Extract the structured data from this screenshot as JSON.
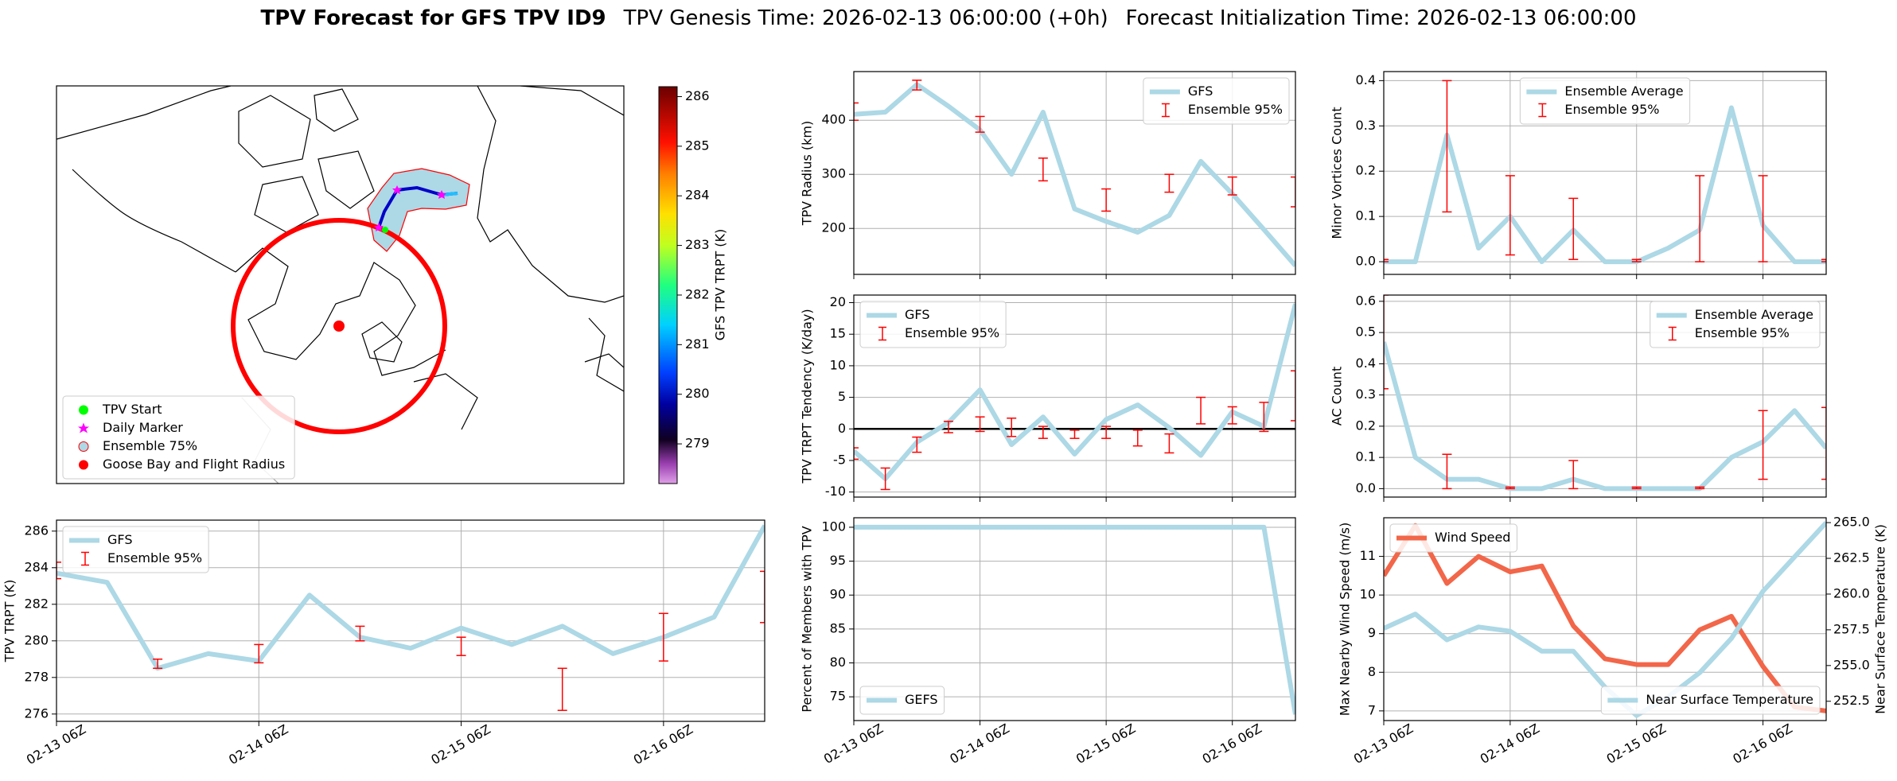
{
  "title": [
    "TPV Forecast for GFS TPV ID9",
    "TPV Genesis Time: 2026-02-13 06:00:00 (+0h)",
    "Forecast Initialization Time: 2026-02-13 06:00:00"
  ],
  "chart_data": [
    {
      "type": "map",
      "legend_labels": [
        "TPV Start",
        "Daily Marker",
        "Ensemble 75%",
        "Goose Bay and Flight Radius"
      ],
      "legend_colors": [
        "#00ff00",
        "#ff00ff",
        "#add8e6",
        "#ff0000"
      ],
      "colorbar": {
        "label": "GFS TPV TRPT (K)",
        "lim": [
          278.2,
          286.2
        ],
        "ticks": [
          279,
          280,
          281,
          282,
          283,
          284,
          285,
          286
        ]
      }
    },
    {
      "type": "line",
      "ylabel": "TPV TRPT (K)",
      "categories": [
        "02-13 06Z",
        null,
        null,
        null,
        "02-14 06Z",
        null,
        null,
        null,
        "02-15 06Z",
        null,
        null,
        null,
        "02-16 06Z",
        null,
        null
      ],
      "series": [
        {
          "name": "GFS",
          "color": "#add8e6",
          "values": [
            283.7,
            283.2,
            278.5,
            279.3,
            278.9,
            282.5,
            280.2,
            279.6,
            280.7,
            279.8,
            280.8,
            279.3,
            280.2,
            281.3,
            286.3
          ]
        },
        {
          "name": "Ensemble 95%",
          "type": "errorbar",
          "color": "#ff0000",
          "lower": [
            283.4,
            null,
            278.5,
            null,
            278.8,
            null,
            280.0,
            null,
            279.2,
            null,
            276.2,
            null,
            278.9,
            null,
            281.0
          ],
          "upper": [
            284.3,
            null,
            279.0,
            null,
            279.8,
            null,
            280.8,
            null,
            280.2,
            null,
            278.5,
            null,
            281.5,
            null,
            283.8
          ]
        }
      ],
      "ylim": [
        275.6,
        286.6
      ],
      "yticks": [
        276,
        278,
        280,
        282,
        284,
        286
      ],
      "grid": true,
      "legend": "upper left"
    },
    {
      "type": "line",
      "ylabel": "TPV Radius (km)",
      "series": [
        {
          "name": "GFS",
          "color": "#add8e6",
          "values": [
            411,
            415,
            466,
            426,
            382,
            300,
            415,
            236,
            213,
            193,
            224,
            324,
            264,
            198,
            131
          ]
        },
        {
          "name": "Ensemble 95%",
          "type": "errorbar",
          "color": "#ff0000",
          "lower": [
            400,
            null,
            456,
            null,
            378,
            null,
            288,
            null,
            232,
            null,
            267,
            null,
            262,
            null,
            240
          ],
          "upper": [
            432,
            null,
            474,
            null,
            407,
            null,
            330,
            null,
            273,
            null,
            300,
            null,
            295,
            null,
            295
          ]
        }
      ],
      "ylim": [
        115,
        490
      ],
      "yticks": [
        200,
        300,
        400
      ],
      "grid": true,
      "legend": "upper right"
    },
    {
      "type": "line",
      "ylabel": "TPV TRPT Tendency (K/day)",
      "series": [
        {
          "name": "GFS",
          "color": "#add8e6",
          "values": [
            -3.5,
            -7.9,
            -2.1,
            1,
            6.2,
            -2.5,
            1.9,
            -4,
            1.5,
            3.8,
            0.2,
            -4.2,
            2.7,
            0.4,
            19.8
          ]
        },
        {
          "name": "Ensemble 95%",
          "type": "errorbar",
          "color": "#ff0000",
          "lower": [
            -4.8,
            -9.6,
            -3.7,
            -0.6,
            -0.4,
            -1.2,
            -1.5,
            -1.5,
            -1.5,
            -2.7,
            -3.8,
            0.8,
            0.8,
            -0.4,
            1.3
          ],
          "upper": [
            -3,
            -6.2,
            -1.3,
            1.2,
            1.9,
            1.7,
            0.4,
            -0.2,
            0.4,
            -0.2,
            -0.8,
            5,
            3.5,
            4.2,
            9.2
          ]
        }
      ],
      "ylim": [
        -10.8,
        21.2
      ],
      "yticks": [
        -10,
        -5,
        0,
        5,
        10,
        15,
        20
      ],
      "hline": 0,
      "grid": true,
      "legend": "upper left"
    },
    {
      "type": "line",
      "ylabel": "Percent of Members with TPV",
      "categories": [
        "02-13 06Z",
        null,
        null,
        null,
        "02-14 06Z",
        null,
        null,
        null,
        "02-15 06Z",
        null,
        null,
        null,
        "02-16 06Z",
        null,
        null
      ],
      "series": [
        {
          "name": "GEFS",
          "color": "#add8e6",
          "values": [
            100,
            100,
            100,
            100,
            100,
            100,
            100,
            100,
            100,
            100,
            100,
            100,
            100,
            100,
            72.4
          ]
        }
      ],
      "ylim": [
        71.5,
        101.4
      ],
      "yticks": [
        75,
        80,
        85,
        90,
        95,
        100
      ],
      "grid": true,
      "legend": "lower left"
    },
    {
      "type": "line",
      "ylabel": "Minor Vortices Count",
      "series": [
        {
          "name": "Ensemble Average",
          "color": "#add8e6",
          "values": [
            0,
            0,
            0.28,
            0.03,
            0.1,
            0,
            0.07,
            0,
            0,
            0.03,
            0.07,
            0.34,
            0.08,
            0,
            0
          ]
        },
        {
          "name": "Ensemble 95%",
          "type": "errorbar",
          "color": "#ff0000",
          "lower": [
            0,
            null,
            0.11,
            null,
            0.015,
            null,
            0.005,
            null,
            0,
            null,
            0,
            null,
            0,
            null,
            0
          ],
          "upper": [
            0.005,
            null,
            0.4,
            null,
            0.19,
            null,
            0.14,
            null,
            0.005,
            null,
            0.19,
            null,
            0.19,
            null,
            0.005
          ]
        }
      ],
      "ylim": [
        -0.028,
        0.42
      ],
      "yticks": [
        {
          "value": 0,
          "label": "0.0"
        },
        0.1,
        0.2,
        0.3,
        0.4
      ],
      "grid": true,
      "legend": "upper center"
    },
    {
      "type": "line",
      "ylabel": "AC Count",
      "series": [
        {
          "name": "Ensemble Average",
          "color": "#add8e6",
          "values": [
            0.47,
            0.1,
            0.03,
            0.03,
            0,
            0,
            0.03,
            0,
            0,
            0,
            0,
            0.1,
            0.15,
            0.25,
            0.13
          ]
        },
        {
          "name": "Ensemble 95%",
          "type": "errorbar",
          "color": "#ff0000",
          "lower": [
            0.32,
            null,
            0,
            null,
            0,
            null,
            0,
            null,
            0,
            null,
            0,
            null,
            0.03,
            null,
            0.03
          ],
          "upper": [
            0.62,
            null,
            0.11,
            null,
            0.005,
            null,
            0.09,
            null,
            0.005,
            null,
            0.005,
            null,
            0.25,
            null,
            0.26
          ]
        }
      ],
      "ylim": [
        -0.027,
        0.62
      ],
      "yticks": [
        {
          "value": 0,
          "label": "0.0"
        },
        0.1,
        0.2,
        0.3,
        0.4,
        0.5,
        0.6
      ],
      "grid": true,
      "legend": "upper right"
    },
    {
      "type": "line",
      "ylabel": "Max Nearby Wind Speed (m/s)",
      "y2label": "Near Surface Temperature (K)",
      "ycolor": "#f26649",
      "y2color": "#4169e1",
      "categories": [
        "02-13 06Z",
        null,
        null,
        null,
        "02-14 06Z",
        null,
        null,
        null,
        "02-15 06Z",
        null,
        null,
        null,
        "02-16 06Z",
        null,
        null
      ],
      "series": [
        {
          "name": "Wind Speed",
          "color": "#f26649",
          "values": [
            10.5,
            11.8,
            10.3,
            11.0,
            10.6,
            10.75,
            9.2,
            8.35,
            8.2,
            8.2,
            9.1,
            9.45,
            8.15,
            7.1,
            7.0
          ]
        },
        {
          "name": "Near Surface Temperature",
          "color": "#add8e6",
          "axis": "y2",
          "values": [
            257.6,
            258.6,
            256.8,
            257.7,
            257.4,
            256.0,
            256.0,
            253.5,
            251.5,
            252.8,
            254.5,
            256.9,
            260.2,
            262.6,
            265.0
          ]
        }
      ],
      "ylim": [
        6.75,
        12.0
      ],
      "yticks": [
        7,
        8,
        9,
        10,
        11
      ],
      "y2lim": [
        251.15,
        265.34
      ],
      "y2ticks": [
        252.5,
        {
          "value": 255,
          "label": "255.0"
        },
        257.5,
        {
          "value": 260,
          "label": "260.0"
        },
        262.5,
        {
          "value": 265,
          "label": "265.0"
        }
      ],
      "grid": true,
      "legend": "upper left",
      "legend2": "lower right"
    }
  ]
}
